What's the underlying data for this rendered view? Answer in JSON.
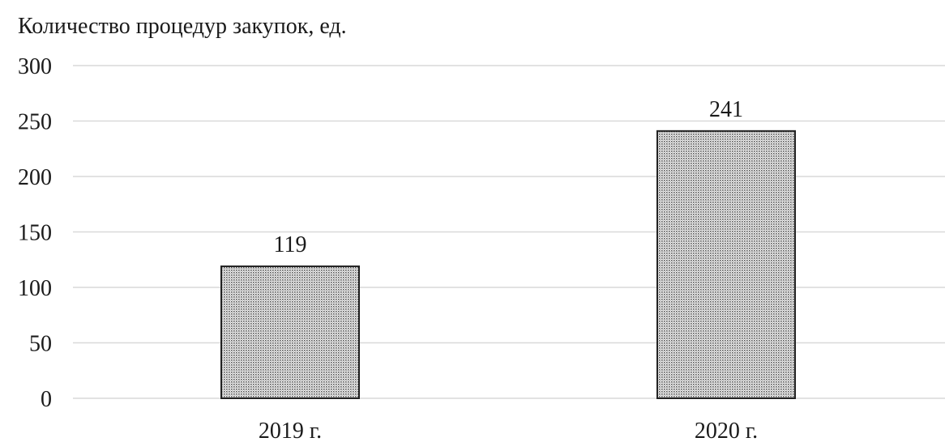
{
  "chart_data": {
    "type": "bar",
    "title": "Количество процедур закупок, ед.",
    "xlabel": "",
    "ylabel": "",
    "categories": [
      "2019 г.",
      "2020 г."
    ],
    "values": [
      119,
      241
    ],
    "data_labels": [
      "119",
      "241"
    ],
    "ylim": [
      0,
      300
    ],
    "yticks": [
      0,
      50,
      100,
      150,
      200,
      250,
      300
    ],
    "ytick_labels": [
      "0",
      "50",
      "100",
      "150",
      "200",
      "250",
      "300"
    ],
    "grid": true,
    "legend": "none",
    "bar_fill": "dotted-pattern",
    "bar_color": "#8c8c8c",
    "bar_edge_color": "#222222",
    "grid_color": "#d9d9d9"
  }
}
